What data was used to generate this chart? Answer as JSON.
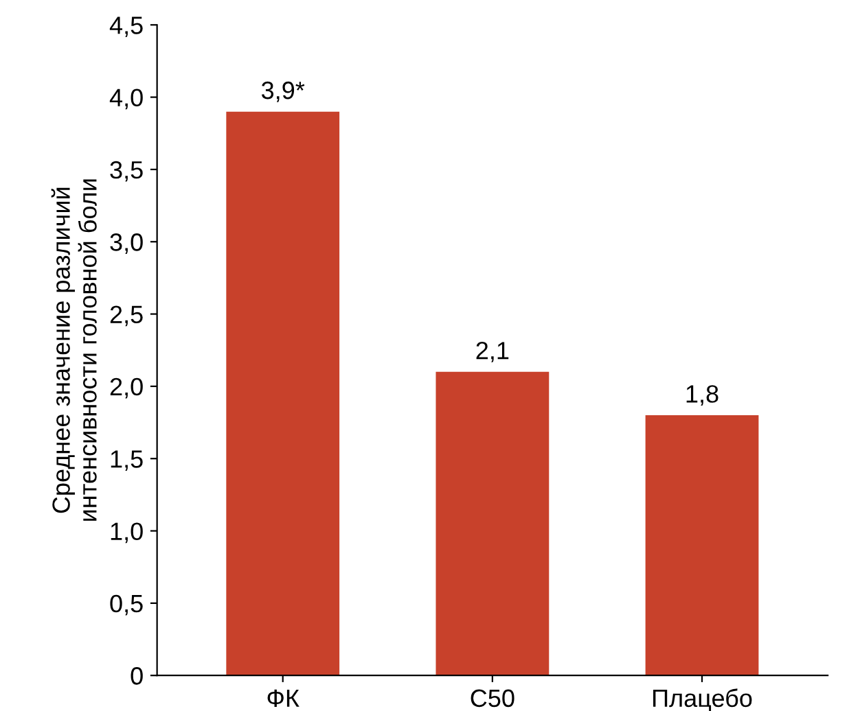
{
  "chart_data": {
    "type": "bar",
    "ylabel": "Среднее значение различий\nинтенсивности головной боли",
    "categories": [
      "ФК",
      "С50",
      "Плацебо"
    ],
    "values": [
      3.9,
      2.1,
      1.8
    ],
    "value_labels": [
      "3,9*",
      "2,1",
      "1,8"
    ],
    "color": "#c8412b",
    "ylim": [
      0,
      4.5
    ],
    "yticks": [
      0,
      {
        "value": 0.5,
        "label": "0,5"
      },
      {
        "value": 1,
        "label": "1,0"
      },
      {
        "value": 1.5,
        "label": "1,5"
      },
      {
        "value": 2,
        "label": "2,0"
      },
      {
        "value": 2.5,
        "label": "2,5"
      },
      {
        "value": 3,
        "label": "3,0"
      },
      {
        "value": 3.5,
        "label": "3,5"
      },
      {
        "value": 4,
        "label": "4,0"
      },
      {
        "value": 4.5,
        "label": "4,5"
      }
    ],
    "grid": false
  }
}
